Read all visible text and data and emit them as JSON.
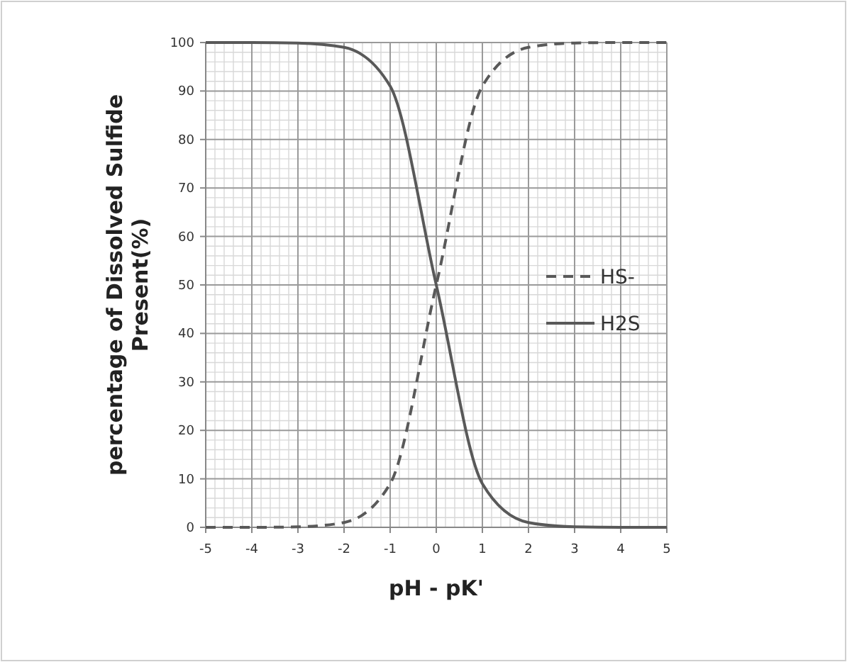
{
  "chart_data": {
    "type": "line",
    "xlabel": "pH - pK'",
    "ylabel": "percentage of Dissolved Sulfide Present(%)",
    "x": [
      -5,
      -4,
      -3,
      -2,
      -1,
      0,
      1,
      2,
      3,
      4,
      5
    ],
    "series": [
      {
        "name": "HS-",
        "color": "#595959",
        "line_style": "dashed",
        "values": [
          0,
          0,
          0.1,
          1,
          9,
          50,
          91,
          99,
          99.9,
          100,
          100
        ]
      },
      {
        "name": "H2S",
        "color": "#595959",
        "line_style": "solid",
        "values": [
          100,
          100,
          99.9,
          99,
          91,
          50,
          9,
          1,
          0.1,
          0,
          0
        ]
      }
    ],
    "xlim": [
      -5,
      5
    ],
    "xticks": [
      -5,
      -4,
      -3,
      -2,
      -1,
      0,
      1,
      2,
      3,
      4,
      5
    ],
    "ylim": [
      0,
      100
    ],
    "yticks": [
      0,
      10,
      20,
      30,
      40,
      50,
      60,
      70,
      80,
      90,
      100
    ],
    "grid": true,
    "legend": "right"
  }
}
